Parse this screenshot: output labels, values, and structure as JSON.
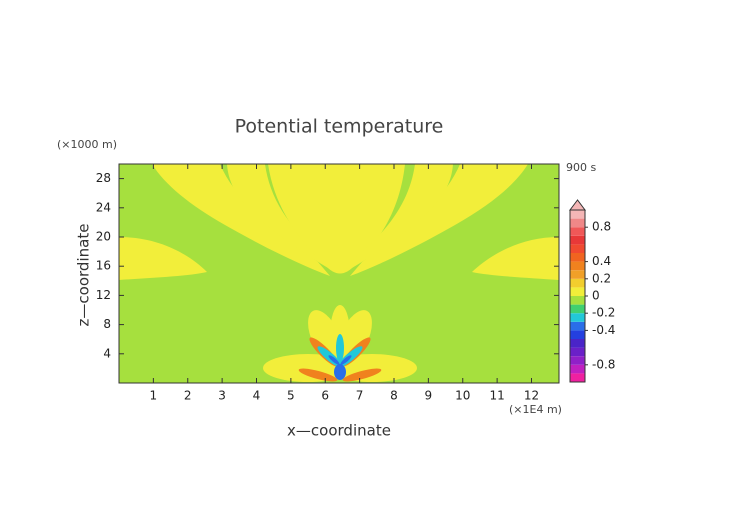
{
  "chart_data": {
    "type": "contour",
    "title": "Potential temperature",
    "x_label": "x—coordinate",
    "y_label": "z—coordinate",
    "x_unit": "(×1E4 m)",
    "y_unit": "(×1000 m)",
    "time_label": "900 s",
    "xlim": [
      0,
      12.8
    ],
    "ylim": [
      0,
      30
    ],
    "xticks": [
      1,
      2,
      3,
      4,
      5,
      6,
      7,
      8,
      9,
      10,
      11,
      12
    ],
    "yticks": [
      4,
      8,
      12,
      16,
      20,
      24,
      28
    ],
    "background_color": "#a6e03e",
    "colorbar": {
      "lim": [
        -1,
        1
      ],
      "ticks": [
        0.8,
        0.4,
        0.2,
        0,
        -0.2,
        -0.4,
        -0.8
      ],
      "levels": [
        -1,
        -0.9,
        -0.8,
        -0.7,
        -0.6,
        -0.5,
        -0.4,
        -0.3,
        -0.2,
        -0.1,
        0,
        0.1,
        0.2,
        0.3,
        0.4,
        0.5,
        0.6,
        0.7,
        0.8,
        0.9,
        1
      ],
      "colors": [
        "#f020a0",
        "#c020c0",
        "#9020c8",
        "#6a20c8",
        "#4a24c8",
        "#2440e0",
        "#2a6ee8",
        "#22c8d8",
        "#40d070",
        "#a6e03e",
        "#f2ee3a",
        "#f2ce2e",
        "#f0a028",
        "#f0821e",
        "#f06420",
        "#f04a30",
        "#e83838",
        "#f05858",
        "#f08888",
        "#f4b6b6"
      ]
    }
  }
}
